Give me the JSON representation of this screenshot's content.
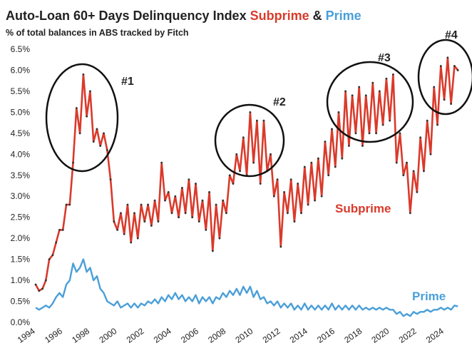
{
  "chart_data": {
    "type": "line",
    "title": "Auto-Loan 60+ Days Delinquency Index",
    "title_joiner": "&",
    "subtitle": "% of total balances in ABS tracked by Fitch",
    "x": [
      1994,
      1994.25,
      1994.5,
      1994.75,
      1995,
      1995.25,
      1995.5,
      1995.75,
      1996,
      1996.25,
      1996.5,
      1996.75,
      1997,
      1997.25,
      1997.5,
      1997.75,
      1998,
      1998.25,
      1998.5,
      1998.75,
      1999,
      1999.25,
      1999.5,
      1999.75,
      2000,
      2000.25,
      2000.5,
      2000.75,
      2001,
      2001.25,
      2001.5,
      2001.75,
      2002,
      2002.25,
      2002.5,
      2002.75,
      2003,
      2003.25,
      2003.5,
      2003.75,
      2004,
      2004.25,
      2004.5,
      2004.75,
      2005,
      2005.25,
      2005.5,
      2005.75,
      2006,
      2006.25,
      2006.5,
      2006.75,
      2007,
      2007.25,
      2007.5,
      2007.75,
      2008,
      2008.25,
      2008.5,
      2008.75,
      2009,
      2009.25,
      2009.5,
      2009.75,
      2010,
      2010.25,
      2010.5,
      2010.75,
      2011,
      2011.25,
      2011.5,
      2011.75,
      2012,
      2012.25,
      2012.5,
      2012.75,
      2013,
      2013.25,
      2013.5,
      2013.75,
      2014,
      2014.25,
      2014.5,
      2014.75,
      2015,
      2015.25,
      2015.5,
      2015.75,
      2016,
      2016.25,
      2016.5,
      2016.75,
      2017,
      2017.25,
      2017.5,
      2017.75,
      2018,
      2018.25,
      2018.5,
      2018.75,
      2019,
      2019.25,
      2019.5,
      2019.75,
      2020,
      2020.25,
      2020.5,
      2020.75,
      2021,
      2021.25,
      2021.5,
      2021.75,
      2022,
      2022.25,
      2022.5,
      2022.75,
      2023,
      2023.25,
      2023.5,
      2023.75,
      2024,
      2024.25,
      2024.5,
      2024.75,
      2025
    ],
    "series": [
      {
        "name": "Subprime",
        "color": "#d93a2b",
        "values": [
          0.9,
          0.75,
          0.8,
          1.0,
          1.5,
          1.6,
          1.9,
          2.2,
          2.2,
          2.8,
          2.8,
          3.8,
          5.1,
          4.5,
          5.9,
          4.9,
          5.5,
          4.3,
          4.6,
          4.2,
          4.5,
          4.1,
          3.4,
          2.4,
          2.2,
          2.6,
          2.1,
          2.8,
          1.9,
          2.6,
          2.0,
          2.8,
          2.4,
          2.8,
          2.3,
          2.9,
          2.4,
          3.8,
          2.9,
          3.1,
          2.6,
          3.0,
          2.5,
          3.2,
          2.6,
          3.4,
          2.5,
          3.3,
          2.4,
          2.9,
          2.2,
          3.1,
          1.7,
          2.8,
          2.0,
          2.9,
          2.6,
          3.5,
          3.3,
          4.0,
          3.6,
          4.4,
          3.5,
          5.0,
          3.8,
          4.8,
          3.3,
          4.8,
          3.6,
          4.0,
          3.0,
          3.4,
          1.8,
          3.1,
          2.6,
          3.4,
          2.4,
          3.3,
          2.6,
          3.7,
          2.8,
          3.8,
          2.9,
          3.9,
          3.0,
          4.3,
          3.5,
          4.6,
          3.7,
          5.0,
          3.9,
          5.5,
          4.2,
          5.4,
          4.5,
          5.6,
          4.2,
          5.4,
          4.5,
          5.7,
          4.5,
          5.5,
          4.7,
          5.8,
          4.8,
          5.9,
          3.8,
          4.5,
          3.5,
          3.8,
          2.6,
          3.6,
          3.1,
          4.4,
          3.6,
          4.8,
          4.0,
          5.6,
          4.7,
          6.1,
          5.3,
          6.3,
          5.2,
          6.1,
          6.0
        ]
      },
      {
        "name": "Prime",
        "color": "#4a9fd8",
        "values": [
          0.35,
          0.3,
          0.35,
          0.4,
          0.35,
          0.45,
          0.6,
          0.7,
          0.6,
          0.9,
          1.0,
          1.4,
          1.2,
          1.3,
          1.5,
          1.2,
          1.3,
          1.0,
          1.1,
          0.8,
          0.7,
          0.5,
          0.45,
          0.4,
          0.5,
          0.35,
          0.4,
          0.45,
          0.35,
          0.45,
          0.35,
          0.45,
          0.4,
          0.5,
          0.45,
          0.55,
          0.45,
          0.6,
          0.5,
          0.65,
          0.55,
          0.7,
          0.55,
          0.65,
          0.5,
          0.6,
          0.5,
          0.65,
          0.45,
          0.6,
          0.5,
          0.6,
          0.45,
          0.6,
          0.55,
          0.7,
          0.6,
          0.75,
          0.65,
          0.8,
          0.65,
          0.85,
          0.7,
          0.85,
          0.6,
          0.75,
          0.55,
          0.6,
          0.45,
          0.5,
          0.4,
          0.5,
          0.35,
          0.45,
          0.35,
          0.45,
          0.3,
          0.4,
          0.3,
          0.45,
          0.3,
          0.4,
          0.3,
          0.4,
          0.3,
          0.4,
          0.3,
          0.45,
          0.3,
          0.4,
          0.3,
          0.4,
          0.3,
          0.4,
          0.3,
          0.4,
          0.3,
          0.35,
          0.3,
          0.35,
          0.3,
          0.35,
          0.3,
          0.35,
          0.3,
          0.3,
          0.2,
          0.25,
          0.15,
          0.2,
          0.15,
          0.25,
          0.2,
          0.25,
          0.25,
          0.3,
          0.25,
          0.3,
          0.3,
          0.35,
          0.3,
          0.35,
          0.3,
          0.4,
          0.38
        ]
      }
    ],
    "annotations": [
      "#1",
      "#2",
      "#3",
      "#4"
    ],
    "xlim": [
      1994,
      2025.2
    ],
    "xticks": [
      1994,
      1996,
      1998,
      2000,
      2002,
      2004,
      2006,
      2008,
      2010,
      2012,
      2014,
      2016,
      2018,
      2020,
      2022,
      2024
    ],
    "ylim": [
      0,
      6.5
    ],
    "yticks": [
      {
        "value": 0,
        "label": "0.0%"
      },
      {
        "value": 0.5,
        "label": "0.5%"
      },
      {
        "value": 1,
        "label": "1.0%"
      },
      {
        "value": 1.5,
        "label": "1.5%"
      },
      {
        "value": 2,
        "label": "2.0%"
      },
      {
        "value": 2.5,
        "label": "2.5%"
      },
      {
        "value": 3,
        "label": "3.0%"
      },
      {
        "value": 3.5,
        "label": "3.5%"
      },
      {
        "value": 4,
        "label": "4.0%"
      },
      {
        "value": 4.5,
        "label": "4.5%"
      },
      {
        "value": 5,
        "label": "5.0%"
      },
      {
        "value": 5.5,
        "label": "5.5%"
      },
      {
        "value": 6,
        "label": "6.0%"
      },
      {
        "value": 6.5,
        "label": "6.5%"
      }
    ],
    "grid": false
  }
}
